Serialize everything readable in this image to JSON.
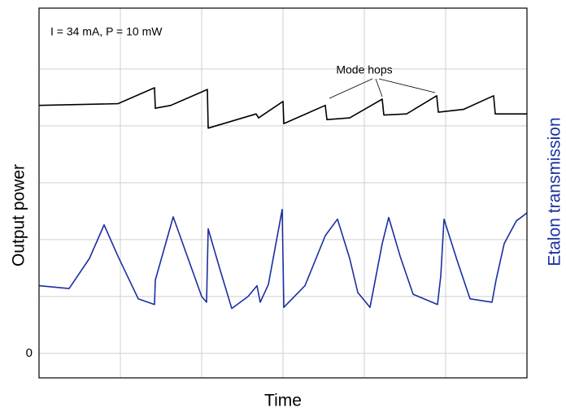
{
  "chart_data": {
    "type": "line",
    "annotation": "I = 34 mA, P = 10 mW",
    "annotation2": "Mode hops",
    "xlabel": "Time",
    "ylabel": "Output power",
    "y2label": "Etalon transmission",
    "xlim": [
      0,
      6
    ],
    "ylim": [
      -0.43,
      6.07
    ],
    "xgrid": [
      1,
      2,
      3,
      4,
      5
    ],
    "ygrid": [
      1,
      2,
      3,
      4,
      5
    ],
    "yticks": [
      0
    ],
    "grid": true,
    "y2color": "#1a2fa0",
    "series": [
      {
        "color": "#000000",
        "x": [
          0,
          0.97,
          1.42,
          1.43,
          1.62,
          2.07,
          2.08,
          2.67,
          2.7,
          3.0,
          3.01,
          3.52,
          3.54,
          3.82,
          4.22,
          4.24,
          4.52,
          4.89,
          4.91,
          5.22,
          5.59,
          5.61,
          6.0
        ],
        "values": [
          4.36,
          4.39,
          4.67,
          4.31,
          4.36,
          4.64,
          3.96,
          4.21,
          4.14,
          4.43,
          4.04,
          4.36,
          4.11,
          4.14,
          4.47,
          4.19,
          4.21,
          4.53,
          4.24,
          4.29,
          4.53,
          4.21,
          4.21
        ]
      },
      {
        "color": "#1a2fa0",
        "x": [
          0,
          0.37,
          0.62,
          0.8,
          0.97,
          1.22,
          1.42,
          1.43,
          1.65,
          1.84,
          2.0,
          2.06,
          2.08,
          2.22,
          2.37,
          2.57,
          2.68,
          2.72,
          2.82,
          2.99,
          3.01,
          3.27,
          3.52,
          3.67,
          3.82,
          3.92,
          4.07,
          4.22,
          4.3,
          4.44,
          4.6,
          4.9,
          4.94,
          4.98,
          5.14,
          5.3,
          5.57,
          5.62,
          5.72,
          5.87,
          6.0
        ],
        "values": [
          1.19,
          1.14,
          1.67,
          2.26,
          1.71,
          0.96,
          0.86,
          1.29,
          2.4,
          1.64,
          1.0,
          0.9,
          2.19,
          1.5,
          0.79,
          1.0,
          1.19,
          0.9,
          1.21,
          2.53,
          0.81,
          1.19,
          2.07,
          2.36,
          1.67,
          1.07,
          0.81,
          1.93,
          2.39,
          1.71,
          1.04,
          0.86,
          1.36,
          2.36,
          1.64,
          0.96,
          0.9,
          1.29,
          1.93,
          2.33,
          2.47
        ]
      }
    ]
  }
}
